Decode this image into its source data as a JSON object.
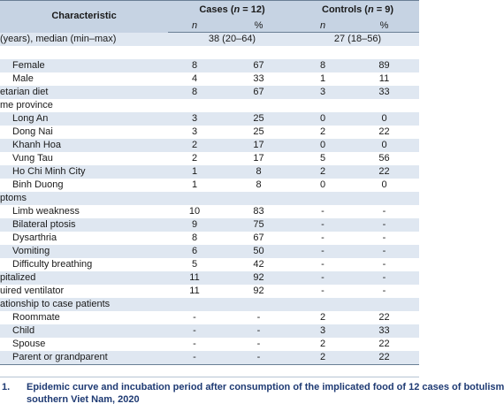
{
  "header": {
    "characteristic": "Characteristic",
    "cases_label": "Cases (",
    "cases_n": "n",
    "cases_eq": " = 12)",
    "controls_label": "Controls (",
    "controls_n": "n",
    "controls_eq": " = 9)",
    "sub_n": "n",
    "sub_pct": "%"
  },
  "rows": [
    {
      "type": "span",
      "label": "(years), median (min–max)",
      "indent": 0,
      "cases": "38 (20–64)",
      "controls": "27 (18–56)",
      "shade": true
    },
    {
      "type": "blank",
      "shade": false
    },
    {
      "type": "data",
      "label": "Female",
      "indent": 1,
      "cn": "8",
      "cp": "67",
      "kn": "8",
      "kp": "89",
      "shade": true
    },
    {
      "type": "data",
      "label": "Male",
      "indent": 1,
      "cn": "4",
      "cp": "33",
      "kn": "1",
      "kp": "11",
      "shade": false
    },
    {
      "type": "data",
      "label": "etarian diet",
      "indent": 0,
      "cn": "8",
      "cp": "67",
      "kn": "3",
      "kp": "33",
      "shade": true
    },
    {
      "type": "label",
      "label": "me province",
      "indent": 0,
      "shade": false
    },
    {
      "type": "data",
      "label": "Long An",
      "indent": 1,
      "cn": "3",
      "cp": "25",
      "kn": "0",
      "kp": "0",
      "shade": true
    },
    {
      "type": "data",
      "label": "Dong Nai",
      "indent": 1,
      "cn": "3",
      "cp": "25",
      "kn": "2",
      "kp": "22",
      "shade": false
    },
    {
      "type": "data",
      "label": "Khanh Hoa",
      "indent": 1,
      "cn": "2",
      "cp": "17",
      "kn": "0",
      "kp": "0",
      "shade": true
    },
    {
      "type": "data",
      "label": "Vung Tau",
      "indent": 1,
      "cn": "2",
      "cp": "17",
      "kn": "5",
      "kp": "56",
      "shade": false
    },
    {
      "type": "data",
      "label": "Ho Chi Minh City",
      "indent": 1,
      "cn": "1",
      "cp": "8",
      "kn": "2",
      "kp": "22",
      "shade": true
    },
    {
      "type": "data",
      "label": "Binh Duong",
      "indent": 1,
      "cn": "1",
      "cp": "8",
      "kn": "0",
      "kp": "0",
      "shade": false
    },
    {
      "type": "label",
      "label": "ptoms",
      "indent": 0,
      "shade": true
    },
    {
      "type": "data",
      "label": "Limb weakness",
      "indent": 1,
      "cn": "10",
      "cp": "83",
      "kn": "-",
      "kp": "-",
      "shade": false
    },
    {
      "type": "data",
      "label": "Bilateral ptosis",
      "indent": 1,
      "cn": "9",
      "cp": "75",
      "kn": "-",
      "kp": "-",
      "shade": true
    },
    {
      "type": "data",
      "label": "Dysarthria",
      "indent": 1,
      "cn": "8",
      "cp": "67",
      "kn": "-",
      "kp": "-",
      "shade": false
    },
    {
      "type": "data",
      "label": "Vomiting",
      "indent": 1,
      "cn": "6",
      "cp": "50",
      "kn": "-",
      "kp": "-",
      "shade": true
    },
    {
      "type": "data",
      "label": "Difficulty breathing",
      "indent": 1,
      "cn": "5",
      "cp": "42",
      "kn": "-",
      "kp": "-",
      "shade": false
    },
    {
      "type": "data",
      "label": "pitalized",
      "indent": 0,
      "cn": "11",
      "cp": "92",
      "kn": "-",
      "kp": "-",
      "shade": true
    },
    {
      "type": "data",
      "label": "uired ventilator",
      "indent": 0,
      "cn": "11",
      "cp": "92",
      "kn": "-",
      "kp": "-",
      "shade": false
    },
    {
      "type": "label",
      "label": "ationship to case patients",
      "indent": 0,
      "shade": true
    },
    {
      "type": "data",
      "label": "Roommate",
      "indent": 1,
      "cn": "-",
      "cp": "-",
      "kn": "2",
      "kp": "22",
      "shade": false
    },
    {
      "type": "data",
      "label": "Child",
      "indent": 1,
      "cn": "-",
      "cp": "-",
      "kn": "3",
      "kp": "33",
      "shade": true
    },
    {
      "type": "data",
      "label": "Spouse",
      "indent": 1,
      "cn": "-",
      "cp": "-",
      "kn": "2",
      "kp": "22",
      "shade": false
    },
    {
      "type": "data",
      "label": "Parent or grandparent",
      "indent": 1,
      "cn": "-",
      "cp": "-",
      "kn": "2",
      "kp": "22",
      "shade": true
    }
  ],
  "caption": {
    "fig_num": "1.",
    "line1": "Epidemic curve and incubation period after consumption of the implicated food of 12 cases of botulism",
    "line2": "southern Viet Nam, 2020"
  },
  "colors": {
    "header_bg": "#c6d3e3",
    "shade_bg": "#dfe7f1",
    "caption_text": "#1e3a73"
  }
}
